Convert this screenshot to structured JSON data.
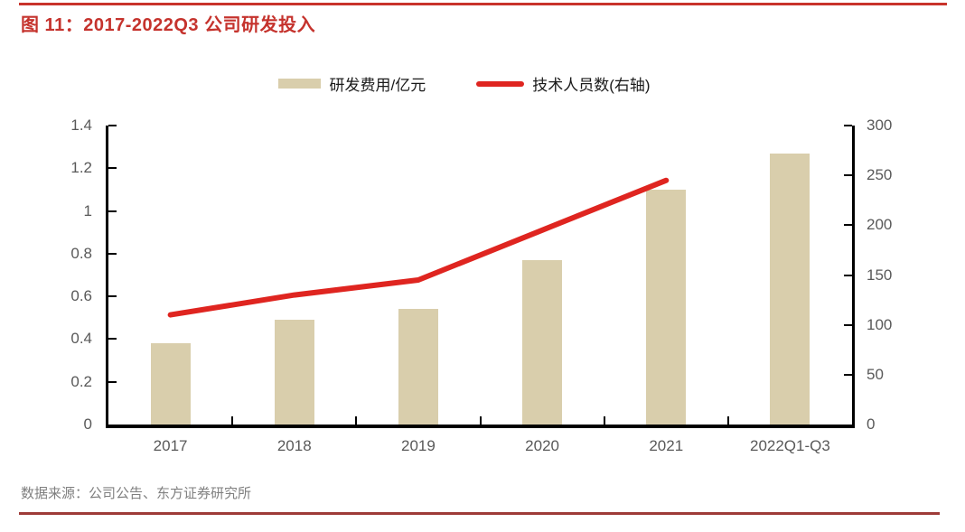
{
  "title": "图 11：2017-2022Q3 公司研发投入",
  "source": "数据来源：公司公告、东方证券研究所",
  "colors": {
    "title_red": "#c5332d",
    "rule_top_red": "#c8332b",
    "rule_bottom_red": "#9e3b38",
    "bar_tan": "#d9ceac",
    "line_red": "#df2520",
    "axis_gray": "#595959",
    "legend_text": "#1a1a1a",
    "source_gray": "#7f7f7f"
  },
  "chart_data": {
    "type": "bar",
    "subtype": "bar+line-combo",
    "title": "2017-2022Q3 公司研发投入",
    "categories": [
      "2017",
      "2018",
      "2019",
      "2020",
      "2021",
      "2022Q1-Q3"
    ],
    "series": [
      {
        "name": "研发费用/亿元",
        "type": "bar",
        "axis": "left",
        "values": [
          0.38,
          0.49,
          0.54,
          0.77,
          1.1,
          1.27
        ]
      },
      {
        "name": "技术人员数(右轴)",
        "type": "line",
        "axis": "right",
        "values": [
          110,
          130,
          145,
          195,
          245,
          null
        ]
      }
    ],
    "left_axis": {
      "min": 0,
      "max": 1.4,
      "step": 0.2,
      "ticks": [
        "0",
        "0.2",
        "0.4",
        "0.6",
        "0.8",
        "1",
        "1.2",
        "1.4"
      ]
    },
    "right_axis": {
      "min": 0,
      "max": 300,
      "step": 50,
      "ticks": [
        "0",
        "50",
        "100",
        "150",
        "200",
        "250",
        "300"
      ]
    },
    "legend_position": "top",
    "grid": false
  }
}
